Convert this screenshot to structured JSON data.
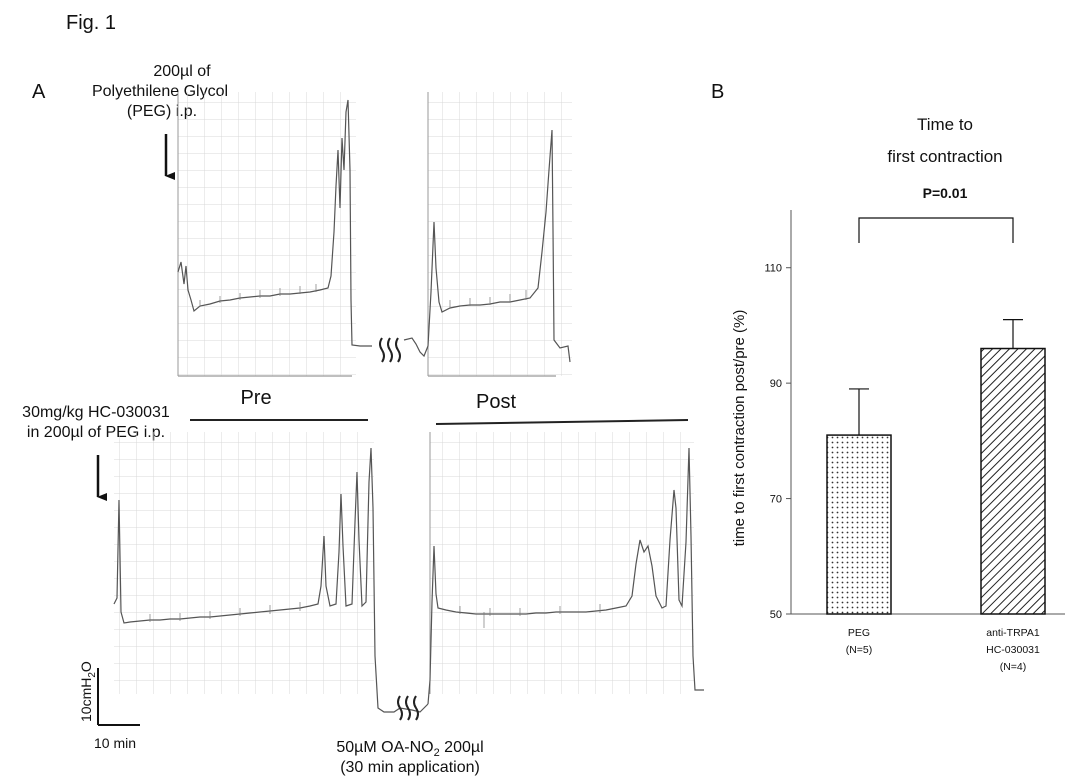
{
  "figure": {
    "title": "Fig. 1",
    "panel_a_label": "A",
    "panel_b_label": "B"
  },
  "panel_a": {
    "top_annotation_lines": [
      "200µl of",
      "Polyethilene Glycol",
      "(PEG) i.p."
    ],
    "bottom_annotation_lines": [
      "30mg/kg HC-030031",
      "in 200µl of PEG i.p."
    ],
    "pre_label": "Pre",
    "post_label": "Post",
    "scale_y_label": "10cmH",
    "scale_y_sub": "2",
    "scale_y_tail": "O",
    "scale_x_label": "10 min",
    "drug_label_main": "50µM OA-NO",
    "drug_label_sub": "2",
    "drug_label_tail": " 200µl",
    "drug_label_line2": "(30 min application)"
  },
  "chart_data": {
    "type": "bar",
    "title_lines": [
      "Time to",
      "first contraction"
    ],
    "ylabel": "time to first contraction post/pre (%)",
    "ylim": [
      50,
      120
    ],
    "yticks": [
      50,
      70,
      90,
      110
    ],
    "categories": [
      [
        "PEG",
        "(N=5)"
      ],
      [
        "anti-TRPA1",
        "HC-030031",
        "(N=4)"
      ]
    ],
    "values": [
      81,
      96
    ],
    "errors": [
      8,
      5
    ],
    "patterns": [
      "dots",
      "hatch"
    ],
    "significance": "P=0.01",
    "grid": false
  }
}
